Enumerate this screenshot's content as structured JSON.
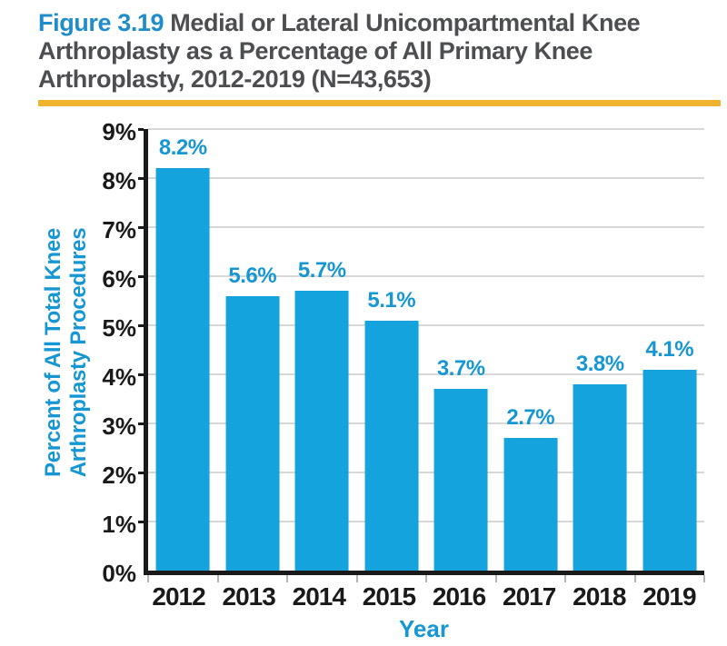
{
  "header": {
    "figure_label": "Figure 3.19",
    "title_rest": "Medial or Lateral Unicompartmental Knee Arthroplasty as a Percentage of All Primary Knee Arthroplasty, 2012-2019 (N=43,653)"
  },
  "colors": {
    "figure_label": "#1f8dcb",
    "title_text": "#4d4e50",
    "divider": "#efb32f",
    "bar": "#14a3dc",
    "data_label": "#1697d3",
    "axis_title": "#1697d3",
    "tick_label": "#1a1a1a",
    "axis": "#1a1a1a",
    "gridline": "#d8d8d8"
  },
  "chart_data": {
    "type": "bar",
    "title": "Figure 3.19 Medial or Lateral Unicompartmental Knee Arthroplasty as a Percentage of All Primary Knee Arthroplasty, 2012-2019 (N=43,653)",
    "categories": [
      "2012",
      "2013",
      "2014",
      "2015",
      "2016",
      "2017",
      "2018",
      "2019"
    ],
    "values": [
      8.2,
      5.6,
      5.7,
      5.1,
      3.7,
      2.7,
      3.8,
      4.1
    ],
    "value_labels": [
      "8.2%",
      "5.6%",
      "5.7%",
      "5.1%",
      "3.7%",
      "2.7%",
      "3.8%",
      "4.1%"
    ],
    "xlabel": "Year",
    "ylabel": "Percent of All Total Knee Arthroplasty Procedures",
    "ylim": [
      0,
      9
    ],
    "y_ticks": [
      "0%",
      "1%",
      "2%",
      "3%",
      "4%",
      "5%",
      "6%",
      "7%",
      "8%",
      "9%"
    ],
    "grid": true,
    "legend": null
  }
}
